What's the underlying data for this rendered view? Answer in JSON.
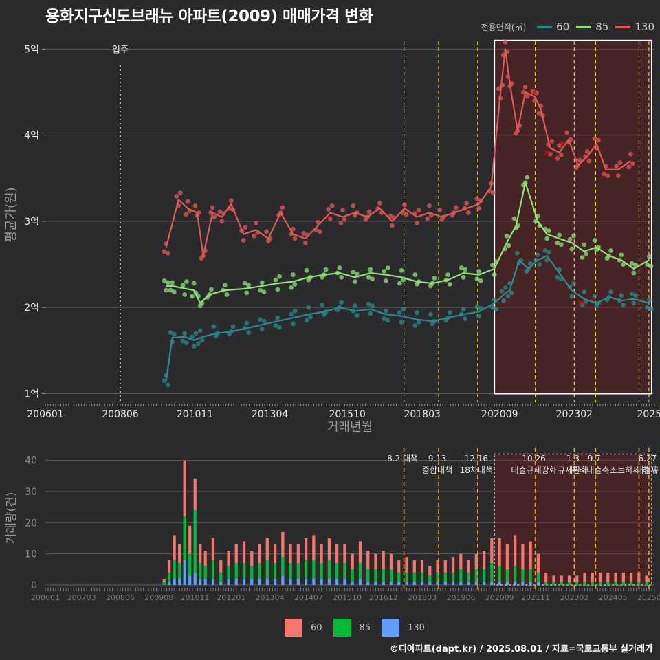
{
  "title": "용화지구신도브래뉴 아파트(2009) 매매가격 변화",
  "legend": {
    "caption": "전용면적(㎡)",
    "items": [
      {
        "label": "60",
        "color": "#2a8a8c"
      },
      {
        "label": "85",
        "color": "#8fe27a"
      },
      {
        "label": "130",
        "color": "#e05858"
      }
    ]
  },
  "bar_legend": {
    "items": [
      {
        "label": "60",
        "color": "#f8766d"
      },
      {
        "label": "85",
        "color": "#00ba38"
      },
      {
        "label": "130",
        "color": "#619cff"
      }
    ]
  },
  "credit": "©디아파트(dapt.kr) / 2025.08.01 / 자료=국토교통부 실거래가",
  "chart_data": [
    {
      "type": "line",
      "title": "용화지구신도브래뉴 아파트(2009) 매매가격 변화",
      "xlabel": "거래년월",
      "ylabel": "평균가(원)",
      "xlim": [
        2006.0,
        2025.67
      ],
      "ylim": [
        0.9,
        5.25
      ],
      "y_ticks": [
        {
          "value": 1,
          "label": "1억"
        },
        {
          "value": 2,
          "label": "2억"
        },
        {
          "value": 3,
          "label": "3억"
        },
        {
          "value": 4,
          "label": "4억"
        },
        {
          "value": 5,
          "label": "5억"
        }
      ],
      "x_ticks": [
        {
          "value": 2006.0,
          "label": "200601"
        },
        {
          "value": 2008.42,
          "label": "200806"
        },
        {
          "value": 2010.83,
          "label": "201011"
        },
        {
          "value": 2013.25,
          "label": "201304"
        },
        {
          "value": 2015.75,
          "label": "201510"
        },
        {
          "value": 2018.17,
          "label": "201803"
        },
        {
          "value": 2020.67,
          "label": "202009"
        },
        {
          "value": 2023.08,
          "label": "202302"
        },
        {
          "value": 2025.5,
          "label": "2025"
        }
      ],
      "annotation": {
        "x": 2008.42,
        "label": "입주"
      },
      "policy_lines": [
        2017.58,
        2018.7,
        2019.96,
        2021.82,
        2023.08,
        2023.77,
        2025.17,
        2025.49
      ],
      "highlight_box": {
        "x": [
          2020.5,
          2025.58
        ],
        "y": [
          1.0,
          5.1
        ]
      },
      "series": [
        {
          "name": "60",
          "color": "#2a8a8c",
          "x": [
            2009.9,
            2010.1,
            2010.5,
            2010.8,
            2011.0,
            2011.5,
            2012.0,
            2012.5,
            2013.0,
            2013.5,
            2014.0,
            2014.5,
            2015.0,
            2015.5,
            2016.0,
            2016.5,
            2017.0,
            2017.5,
            2018.0,
            2018.5,
            2019.0,
            2019.5,
            2020.0,
            2020.5,
            2020.8,
            2021.0,
            2021.3,
            2021.6,
            2021.9,
            2022.2,
            2022.6,
            2023.0,
            2023.4,
            2023.8,
            2024.2,
            2024.6,
            2025.0,
            2025.5
          ],
          "y": [
            1.15,
            1.65,
            1.66,
            1.62,
            1.65,
            1.7,
            1.72,
            1.76,
            1.8,
            1.84,
            1.88,
            1.92,
            1.95,
            2.0,
            1.96,
            1.98,
            1.92,
            1.9,
            1.86,
            1.84,
            1.88,
            1.92,
            1.95,
            2.05,
            2.15,
            2.2,
            2.55,
            2.45,
            2.55,
            2.6,
            2.4,
            2.2,
            2.1,
            2.05,
            2.12,
            2.08,
            2.1,
            2.05
          ]
        },
        {
          "name": "85",
          "color": "#8fe27a",
          "x": [
            2009.9,
            2010.1,
            2010.5,
            2010.8,
            2011.0,
            2011.3,
            2011.8,
            2012.5,
            2013.0,
            2013.5,
            2014.0,
            2014.5,
            2015.0,
            2015.5,
            2016.0,
            2016.5,
            2017.0,
            2017.5,
            2018.0,
            2018.5,
            2019.0,
            2019.5,
            2020.0,
            2020.5,
            2020.9,
            2021.2,
            2021.5,
            2021.9,
            2022.2,
            2022.6,
            2023.0,
            2023.4,
            2023.8,
            2024.2,
            2024.6,
            2025.0,
            2025.5
          ],
          "y": [
            2.25,
            2.25,
            2.22,
            2.2,
            2.05,
            2.15,
            2.2,
            2.22,
            2.25,
            2.28,
            2.3,
            2.35,
            2.38,
            2.4,
            2.35,
            2.4,
            2.38,
            2.35,
            2.3,
            2.28,
            2.32,
            2.4,
            2.38,
            2.45,
            2.75,
            2.95,
            3.45,
            3.0,
            2.85,
            2.8,
            2.75,
            2.65,
            2.7,
            2.6,
            2.55,
            2.45,
            2.55
          ]
        },
        {
          "name": "130",
          "color": "#e05858",
          "x": [
            2009.9,
            2010.3,
            2010.6,
            2010.9,
            2011.1,
            2011.4,
            2011.7,
            2012.0,
            2012.4,
            2012.8,
            2013.2,
            2013.6,
            2014.0,
            2014.4,
            2014.8,
            2015.2,
            2015.6,
            2016.0,
            2016.4,
            2016.8,
            2017.2,
            2017.6,
            2018.0,
            2018.4,
            2018.8,
            2019.2,
            2019.6,
            2020.0,
            2020.4,
            2020.7,
            2020.85,
            2021.0,
            2021.25,
            2021.5,
            2021.8,
            2022.0,
            2022.3,
            2022.6,
            2022.9,
            2023.2,
            2023.5,
            2023.8,
            2024.1,
            2024.5,
            2024.9
          ],
          "y": [
            2.7,
            3.25,
            3.15,
            3.1,
            2.6,
            3.1,
            3.05,
            3.2,
            2.85,
            2.9,
            2.8,
            3.1,
            2.85,
            2.8,
            2.95,
            3.1,
            3.05,
            3.1,
            3.05,
            3.15,
            3.0,
            3.15,
            3.05,
            3.1,
            3.05,
            3.1,
            3.15,
            3.2,
            3.4,
            4.5,
            5.0,
            4.6,
            4.05,
            4.5,
            4.45,
            4.3,
            3.85,
            3.8,
            3.95,
            3.65,
            3.75,
            3.9,
            3.6,
            3.6,
            3.7
          ]
        }
      ],
      "outliers_130": {
        "x": [
          2021.8,
          2022.2,
          2022.7,
          2023.3
        ],
        "y": [
          4.5,
          3.8,
          3.9,
          2.05
        ]
      }
    },
    {
      "type": "bar",
      "xlabel": "",
      "ylabel": "거래량(건)",
      "ylim": [
        0,
        43
      ],
      "xlim": [
        2006.0,
        2025.67
      ],
      "y_ticks": [
        0,
        10,
        20,
        30,
        40
      ],
      "x_ticks": [
        {
          "value": 2006.0,
          "label": "200601"
        },
        {
          "value": 2007.17,
          "label": "200703"
        },
        {
          "value": 2008.42,
          "label": "200806"
        },
        {
          "value": 2009.67,
          "label": "200908"
        },
        {
          "value": 2010.83,
          "label": "201011"
        },
        {
          "value": 2012.0,
          "label": "201201"
        },
        {
          "value": 2013.25,
          "label": "201304"
        },
        {
          "value": 2014.5,
          "label": "201407"
        },
        {
          "value": 2015.75,
          "label": "201510"
        },
        {
          "value": 2016.92,
          "label": "201612"
        },
        {
          "value": 2018.17,
          "label": "201803"
        },
        {
          "value": 2019.42,
          "label": "201906"
        },
        {
          "value": 2020.67,
          "label": "202009"
        },
        {
          "value": 2021.83,
          "label": "202111"
        },
        {
          "value": 2023.08,
          "label": "202302"
        },
        {
          "value": 2024.33,
          "label": "202405"
        },
        {
          "value": 2025.5,
          "label": "20250"
        }
      ],
      "policy_labels": [
        {
          "x": 2017.58,
          "lines": [
            "8.2 대책"
          ]
        },
        {
          "x": 2018.7,
          "lines": [
            "9.13",
            "종합대책"
          ]
        },
        {
          "x": 2019.96,
          "lines": [
            "12.16",
            "18차대책"
          ]
        },
        {
          "x": 2021.82,
          "lines": [
            "10.26",
            "대출규제강화"
          ]
        },
        {
          "x": 2023.08,
          "lines": [
            "1.3",
            "규제완화"
          ]
        },
        {
          "x": 2023.77,
          "lines": [
            "9.7",
            "특례대출축소"
          ]
        },
        {
          "x": 2025.17,
          "lines": [
            "",
            "토허제 해제"
          ]
        },
        {
          "x": 2025.49,
          "lines": [
            "6.27",
            "대출규"
          ]
        }
      ],
      "highlight_box": {
        "x": [
          2020.5,
          2025.58
        ],
        "y": [
          0,
          42
        ]
      },
      "categories": [
        "200911",
        "201001",
        "201003",
        "201005",
        "201007",
        "201009",
        "201011",
        "201101",
        "201103",
        "201106",
        "201109",
        "201112",
        "201203",
        "201206",
        "201209",
        "201212",
        "201303",
        "201306",
        "201309",
        "201312",
        "201403",
        "201406",
        "201409",
        "201412",
        "201503",
        "201506",
        "201509",
        "201512",
        "201603",
        "201606",
        "201609",
        "201612",
        "201703",
        "201706",
        "201709",
        "201712",
        "201803",
        "201806",
        "201809",
        "201812",
        "201903",
        "201906",
        "201909",
        "201912",
        "202003",
        "202006",
        "202009",
        "202012",
        "202103",
        "202106",
        "202109",
        "202112",
        "202203",
        "202206",
        "202209",
        "202212",
        "202303",
        "202306",
        "202309",
        "202312",
        "202403",
        "202406",
        "202409",
        "202412",
        "202503",
        "202506"
      ],
      "series": [
        {
          "name": "60",
          "values": [
            1,
            4,
            8,
            6,
            18,
            9,
            10,
            6,
            5,
            7,
            4,
            5,
            6,
            7,
            5,
            6,
            7,
            6,
            8,
            6,
            6,
            7,
            8,
            6,
            7,
            6,
            6,
            5,
            7,
            6,
            5,
            6,
            5,
            4,
            5,
            4,
            4,
            3,
            4,
            4,
            5,
            5,
            4,
            5,
            6,
            8,
            9,
            8,
            10,
            8,
            9,
            6,
            3,
            2,
            2,
            2,
            2,
            3,
            3,
            3,
            3,
            3,
            3,
            3,
            3,
            2
          ]
        },
        {
          "name": "85",
          "values": [
            1,
            3,
            6,
            5,
            14,
            7,
            20,
            5,
            4,
            6,
            3,
            4,
            5,
            5,
            4,
            5,
            6,
            5,
            6,
            5,
            5,
            6,
            6,
            5,
            6,
            5,
            5,
            4,
            5,
            4,
            4,
            4,
            4,
            3,
            3,
            3,
            3,
            2,
            3,
            3,
            3,
            4,
            3,
            4,
            4,
            6,
            5,
            4,
            5,
            4,
            4,
            3,
            1,
            1,
            1,
            1,
            1,
            1,
            1,
            1,
            1,
            1,
            1,
            1,
            1,
            1
          ]
        },
        {
          "name": "130",
          "values": [
            0,
            1,
            2,
            2,
            8,
            3,
            4,
            2,
            2,
            2,
            1,
            2,
            2,
            2,
            2,
            2,
            2,
            2,
            3,
            2,
            2,
            2,
            2,
            2,
            2,
            2,
            2,
            1,
            2,
            1,
            1,
            1,
            1,
            1,
            1,
            1,
            1,
            1,
            1,
            1,
            1,
            1,
            1,
            1,
            1,
            1,
            1,
            1,
            1,
            1,
            1,
            1,
            0,
            0,
            0,
            0,
            0,
            0,
            0,
            0,
            0,
            0,
            0,
            0,
            0,
            0
          ]
        }
      ]
    }
  ]
}
